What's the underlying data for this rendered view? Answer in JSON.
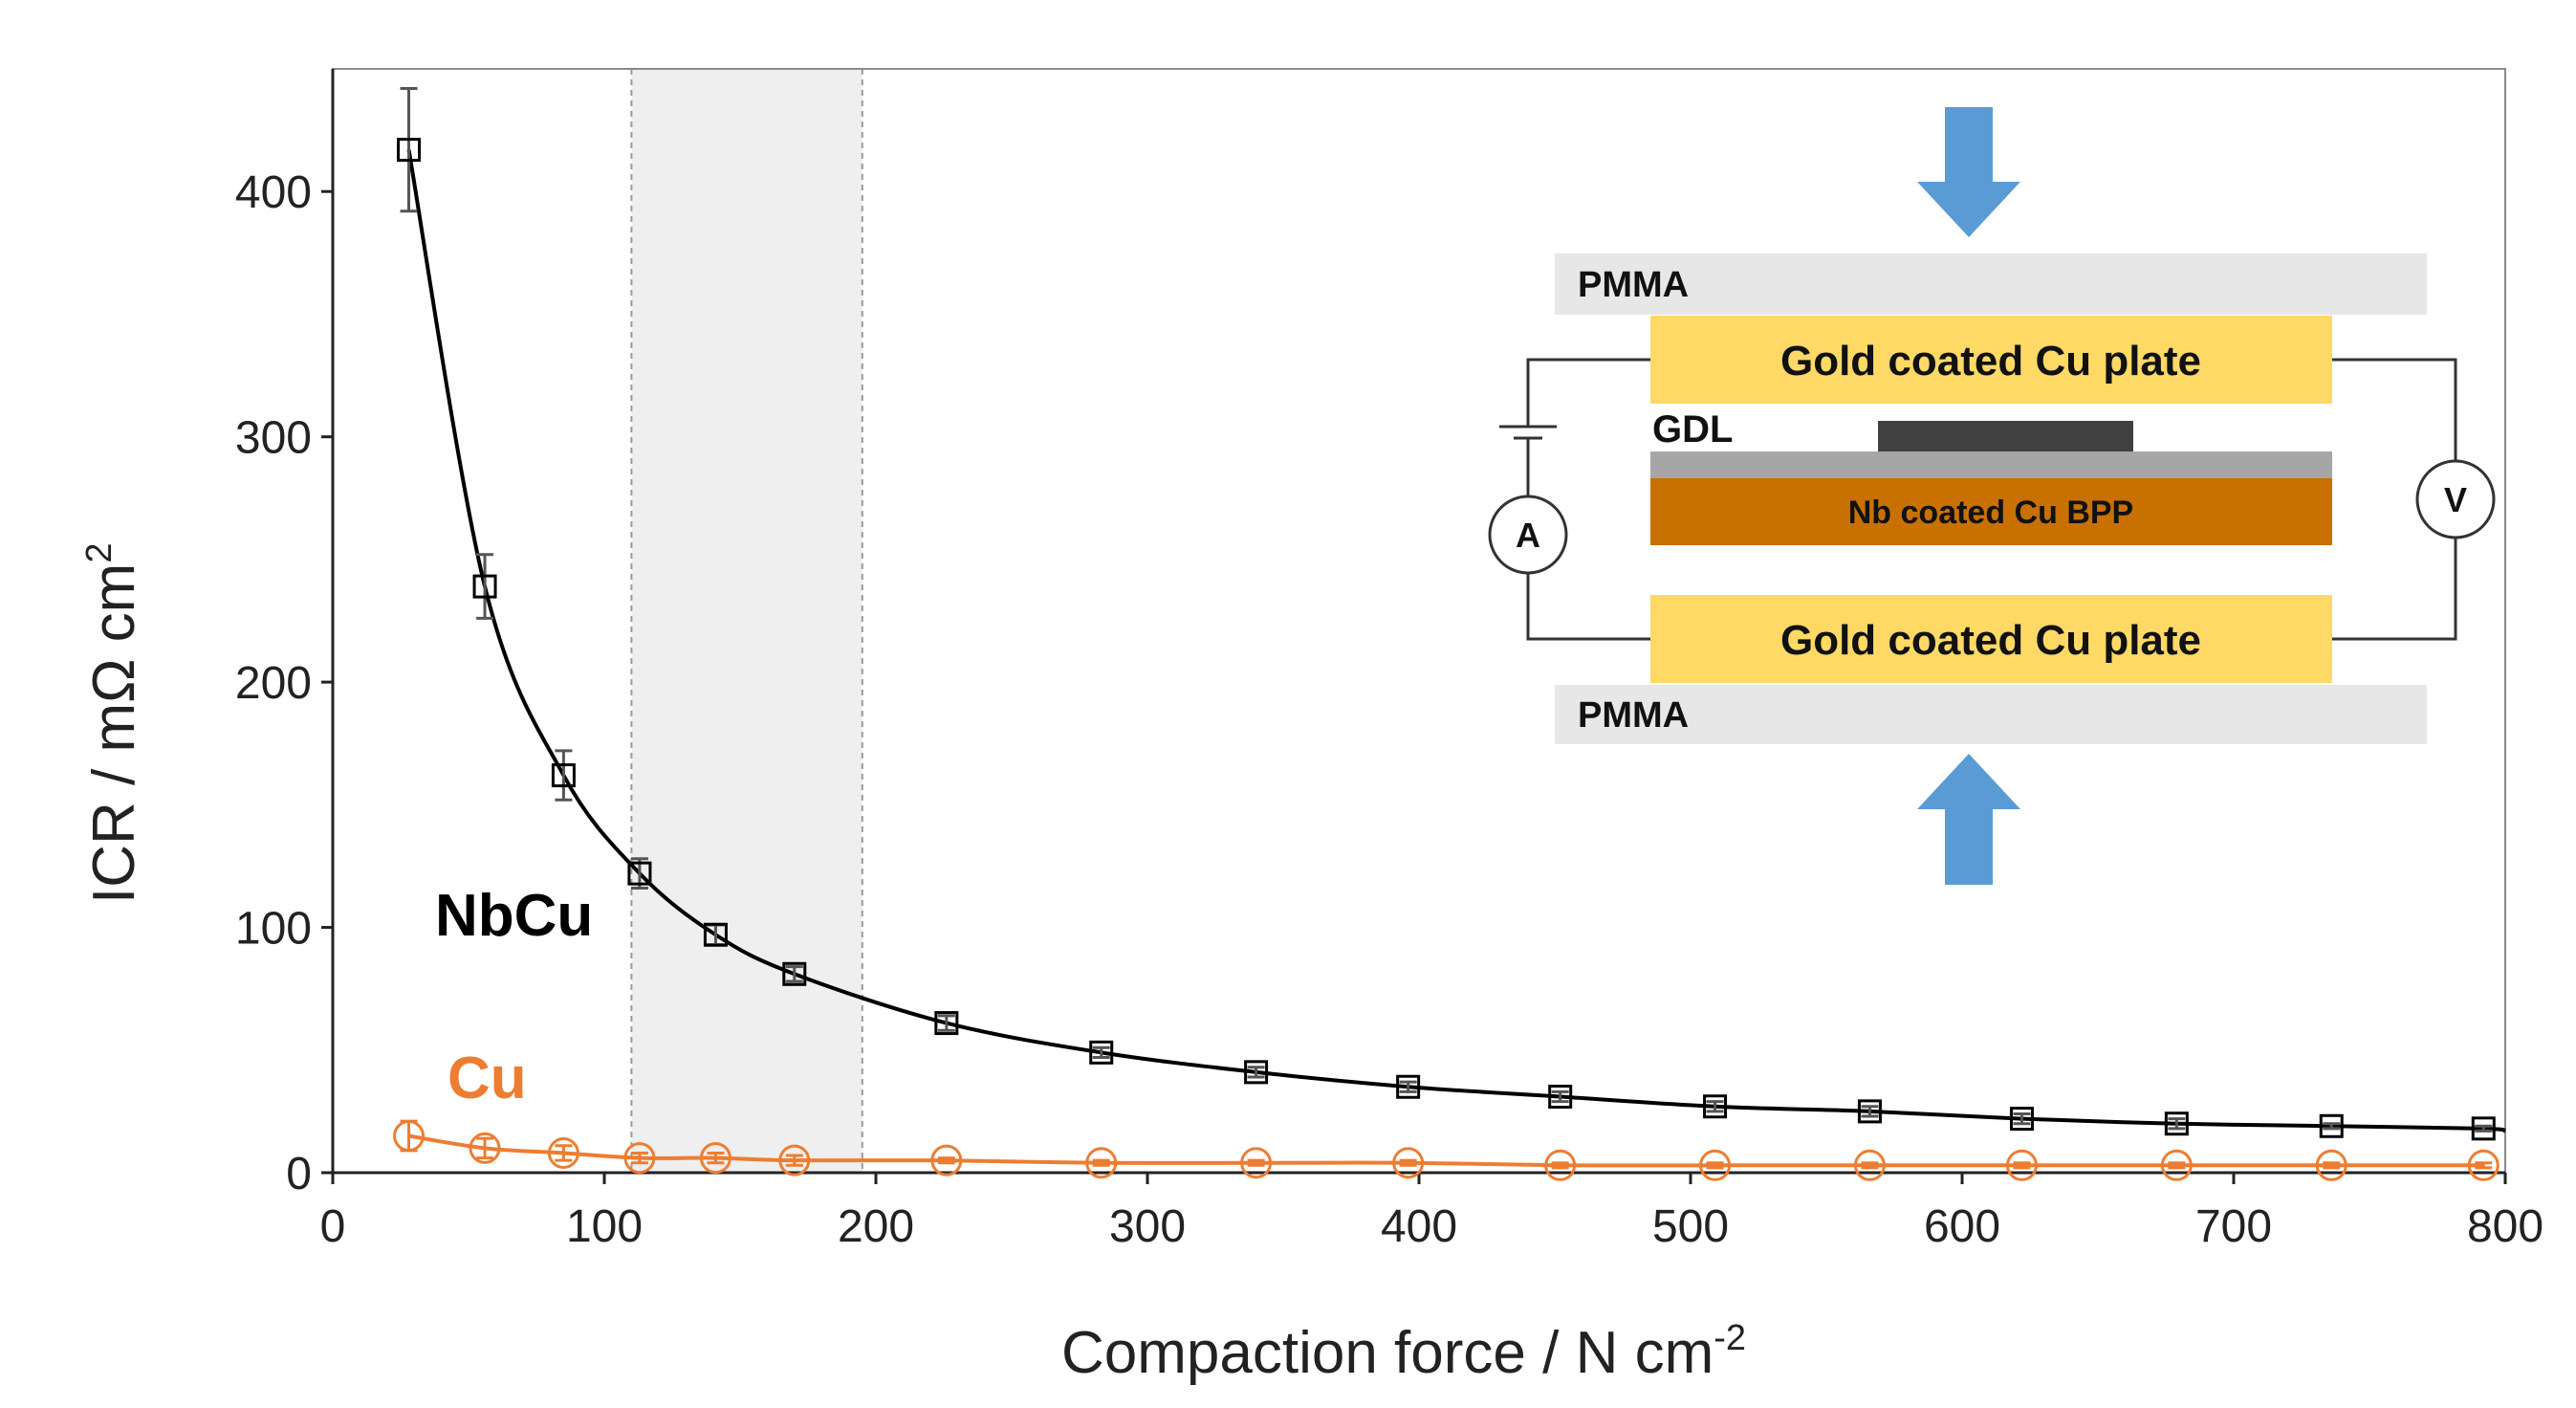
{
  "chart_data": {
    "type": "scatter",
    "xlabel": "Compaction force / N cm",
    "xlabel_sup": "-2",
    "ylabel": "ICR / mΩ cm",
    "ylabel_sup": "2",
    "xlim": [
      0,
      800
    ],
    "ylim": [
      0,
      450
    ],
    "x_ticks": [
      "0",
      "100",
      "200",
      "300",
      "400",
      "500",
      "600",
      "700",
      "800"
    ],
    "y_ticks": [
      "0",
      "100",
      "200",
      "300",
      "400"
    ],
    "grid": false,
    "highlight_band": {
      "x_start": 110,
      "x_end": 195
    },
    "series": [
      {
        "name": "NbCu",
        "marker": "square",
        "color": "#000000",
        "label_color": "#000000",
        "x": [
          28,
          56,
          85,
          113,
          141,
          170,
          226,
          283,
          340,
          396,
          452,
          509,
          566,
          622,
          679,
          736,
          792
        ],
        "y": [
          417,
          239,
          162,
          122,
          97,
          81,
          61,
          49,
          41,
          35,
          31,
          27,
          25,
          22,
          20,
          19,
          18
        ],
        "err": [
          25,
          13,
          10,
          6,
          4,
          3,
          3,
          2,
          2,
          2,
          2,
          2,
          2,
          2,
          2,
          1,
          1
        ],
        "fit_end": [
          800,
          17
        ]
      },
      {
        "name": "Cu",
        "marker": "circle",
        "color": "#ED7D31",
        "label_color": "#ED7D31",
        "x": [
          28,
          56,
          85,
          113,
          141,
          170,
          226,
          283,
          340,
          396,
          452,
          509,
          566,
          622,
          679,
          736,
          792
        ],
        "y": [
          15,
          10,
          8,
          6,
          6,
          5,
          5,
          4,
          4,
          4,
          3,
          3,
          3,
          3,
          3,
          3,
          3
        ],
        "err": [
          6,
          4,
          3,
          2,
          2,
          2,
          1,
          1,
          1,
          1,
          1,
          1,
          1,
          1,
          1,
          1,
          1
        ]
      }
    ],
    "inset": {
      "pmma_top": "PMMA",
      "plate_top": "Gold coated Cu plate",
      "gdl": "GDL",
      "bpp": "Nb coated Cu BPP",
      "plate_bottom": "Gold coated Cu plate",
      "pmma_bottom": "PMMA",
      "ammeter": "A",
      "voltmeter": "V",
      "colors": {
        "pmma": "#E7E7E7",
        "plate": "#FFD966",
        "bpp": "#C87000",
        "gdl_bar": "#404040",
        "gdl_layer": "#A6A6A6",
        "arrow": "#5B9BD5"
      }
    }
  }
}
